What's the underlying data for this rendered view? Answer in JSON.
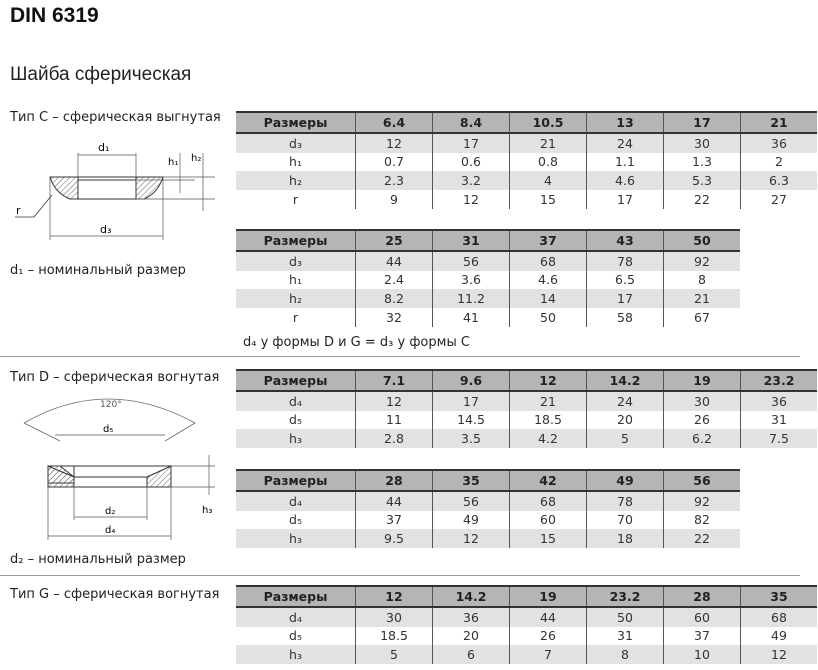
{
  "title": "DIN 6319",
  "subtitle": "Шайба сферическая",
  "type_c": {
    "label": "Тип C – сферическая выгнутая",
    "note": "d₁ – номинальный размер",
    "drawing_labels": {
      "d1": "d₁",
      "d3": "d₃",
      "h1": "h₁",
      "h2": "h₂",
      "r": "r"
    },
    "tables": [
      {
        "header": [
          "Размеры",
          "6.4",
          "8.4",
          "10.5",
          "13",
          "17",
          "21"
        ],
        "rows": [
          [
            "d₃",
            "12",
            "17",
            "21",
            "24",
            "30",
            "36"
          ],
          [
            "h₁",
            "0.7",
            "0.6",
            "0.8",
            "1.1",
            "1.3",
            "2"
          ],
          [
            "h₂",
            "2.3",
            "3.2",
            "4",
            "4.6",
            "5.3",
            "6.3"
          ],
          [
            "r",
            "9",
            "12",
            "15",
            "17",
            "22",
            "27"
          ]
        ]
      },
      {
        "header": [
          "Размеры",
          "25",
          "31",
          "37",
          "43",
          "50"
        ],
        "rows": [
          [
            "d₃",
            "44",
            "56",
            "68",
            "78",
            "92"
          ],
          [
            "h₁",
            "2.4",
            "3.6",
            "4.6",
            "6.5",
            "8"
          ],
          [
            "h₂",
            "8.2",
            "11.2",
            "14",
            "17",
            "21"
          ],
          [
            "r",
            "32",
            "41",
            "50",
            "58",
            "67"
          ]
        ]
      }
    ]
  },
  "form_note": "d₄ у формы D и G = d₃ у формы C",
  "type_d": {
    "label": "Тип D – сферическая вогнутая",
    "note": "d₂ – номинальный размер",
    "drawing_labels": {
      "angle": "120°",
      "d5": "d₅",
      "d2": "d₂",
      "d4": "d₄",
      "h3": "h₃"
    },
    "tables": [
      {
        "header": [
          "Размеры",
          "7.1",
          "9.6",
          "12",
          "14.2",
          "19",
          "23.2"
        ],
        "rows": [
          [
            "d₄",
            "12",
            "17",
            "21",
            "24",
            "30",
            "36"
          ],
          [
            "d₅",
            "11",
            "14.5",
            "18.5",
            "20",
            "26",
            "31"
          ],
          [
            "h₃",
            "2.8",
            "3.5",
            "4.2",
            "5",
            "6.2",
            "7.5"
          ]
        ]
      },
      {
        "header": [
          "Размеры",
          "28",
          "35",
          "42",
          "49",
          "56"
        ],
        "rows": [
          [
            "d₄",
            "44",
            "56",
            "68",
            "78",
            "92"
          ],
          [
            "d₅",
            "37",
            "49",
            "60",
            "70",
            "82"
          ],
          [
            "h₃",
            "9.5",
            "12",
            "15",
            "18",
            "22"
          ]
        ]
      }
    ]
  },
  "type_g": {
    "label": "Тип G – сферическая вогнутая",
    "tables": [
      {
        "header": [
          "Размеры",
          "12",
          "14.2",
          "19",
          "23.2",
          "28",
          "35"
        ],
        "rows": [
          [
            "d₄",
            "30",
            "36",
            "44",
            "50",
            "60",
            "68"
          ],
          [
            "d₅",
            "18.5",
            "20",
            "26",
            "31",
            "37",
            "49"
          ],
          [
            "h₃",
            "5",
            "6",
            "7",
            "8",
            "10",
            "12"
          ]
        ]
      }
    ]
  }
}
